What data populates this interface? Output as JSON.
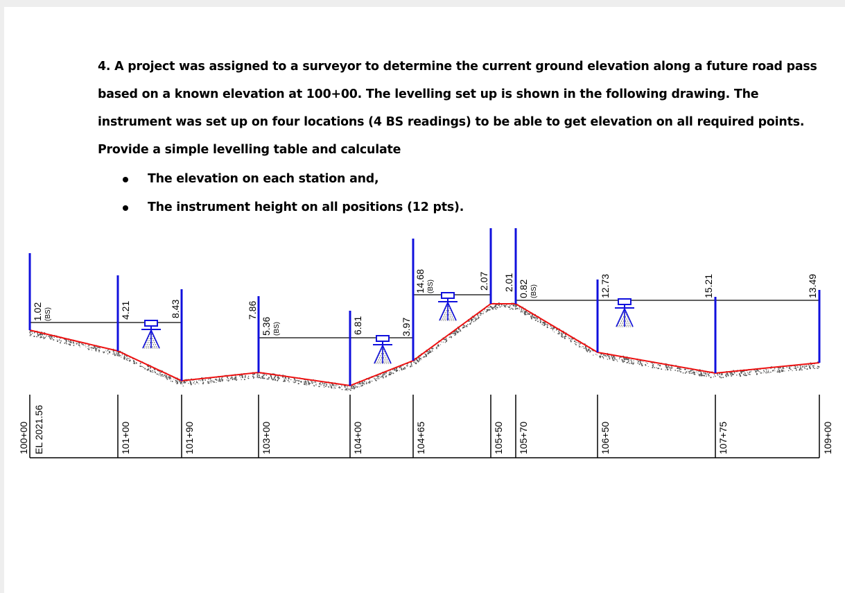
{
  "question": {
    "lines": [
      "4. A project was assigned to a surveyor to determine the current ground elevation along a future road pass",
      "based on a known elevation at 100+00. The levelling set up is shown in the following drawing. The",
      "instrument was set up on four locations (4 BS readings) to be able to get elevation on all required points.",
      "Provide a simple levelling table and calculate"
    ],
    "bullets": [
      "The elevation on each station and,",
      "The instrument height on all positions (12 pts)."
    ]
  },
  "drawing": {
    "start_elevation": "EL 2021.56",
    "bs_tag": "(BS)",
    "stations": [
      "100+00",
      "101+00",
      "101+90",
      "103+00",
      "104+00",
      "104+65",
      "105+50",
      "105+70",
      "106+50",
      "107+75",
      "109+00"
    ],
    "readings": [
      {
        "value": "1.02",
        "bs": true
      },
      {
        "value": "4.21",
        "bs": false
      },
      {
        "value": "8.43",
        "bs": false
      },
      {
        "value": "7.86",
        "bs": false
      },
      {
        "value": "5.36",
        "bs": true
      },
      {
        "value": "6.81",
        "bs": false
      },
      {
        "value": "3.97",
        "bs": false
      },
      {
        "value": "14.68",
        "bs": true
      },
      {
        "value": "2.07",
        "bs": false
      },
      {
        "value": "2.01",
        "bs": false
      },
      {
        "value": "0.82",
        "bs": true
      },
      {
        "value": "12.73",
        "bs": false
      },
      {
        "value": "15.21",
        "bs": false
      },
      {
        "value": "13.49",
        "bs": false
      }
    ],
    "colors": {
      "rod": "#1010dd",
      "ground": "#ee1111",
      "sight": "#000000",
      "instrument": "#1010dd"
    }
  }
}
